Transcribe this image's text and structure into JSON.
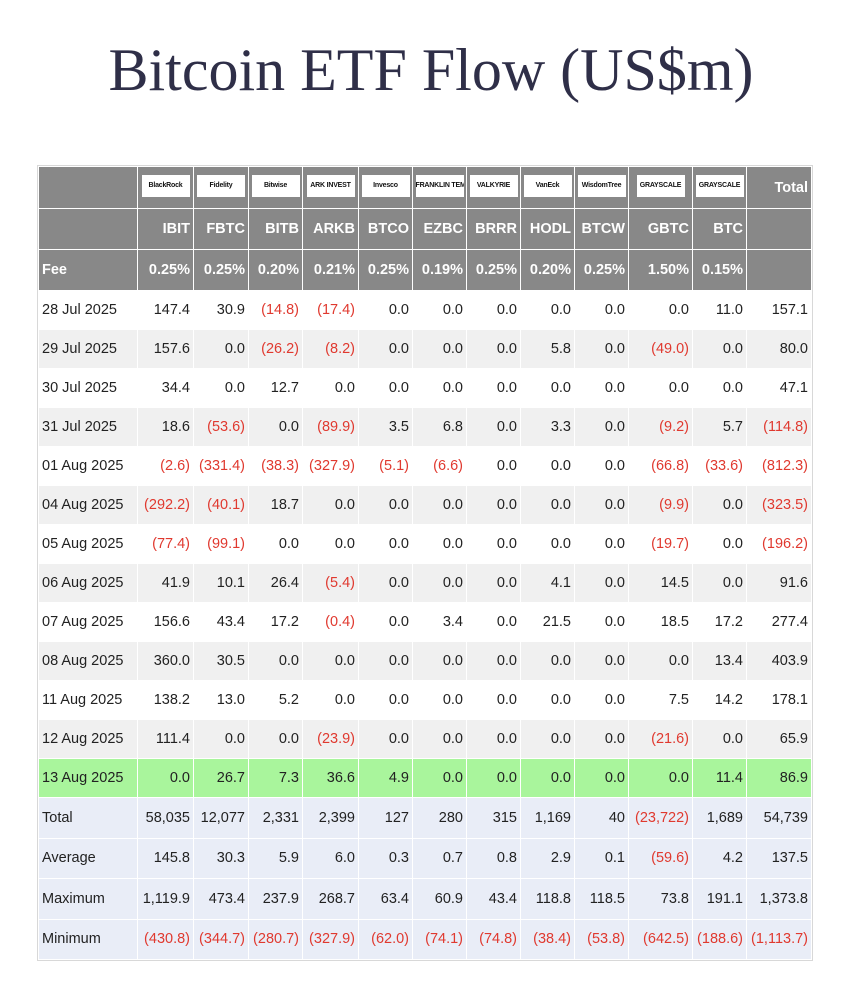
{
  "title": "Bitcoin ETF Flow (US$m)",
  "table": {
    "logos": [
      "BlackRock",
      "Fidelity",
      "Bitwise",
      "ARK INVEST",
      "Invesco",
      "FRANKLIN TEMPLETON",
      "VALKYRIE",
      "VanEck",
      "WisdomTree",
      "GRAYSCALE",
      "GRAYSCALE"
    ],
    "total_header": "Total",
    "tickers": [
      "IBIT",
      "FBTC",
      "BITB",
      "ARKB",
      "BTCO",
      "EZBC",
      "BRRR",
      "HODL",
      "BTCW",
      "GBTC",
      "BTC"
    ],
    "fee": {
      "label": "Fee",
      "values": [
        "0.25%",
        "0.25%",
        "0.20%",
        "0.21%",
        "0.25%",
        "0.19%",
        "0.25%",
        "0.20%",
        "0.25%",
        "1.50%",
        "0.15%"
      ]
    },
    "rows": [
      {
        "date": "28 Jul 2025",
        "values": [
          "147.4",
          "30.9",
          "(14.8)",
          "(17.4)",
          "0.0",
          "0.0",
          "0.0",
          "0.0",
          "0.0",
          "0.0",
          "11.0",
          "157.1"
        ]
      },
      {
        "date": "29 Jul 2025",
        "values": [
          "157.6",
          "0.0",
          "(26.2)",
          "(8.2)",
          "0.0",
          "0.0",
          "0.0",
          "5.8",
          "0.0",
          "(49.0)",
          "0.0",
          "80.0"
        ]
      },
      {
        "date": "30 Jul 2025",
        "values": [
          "34.4",
          "0.0",
          "12.7",
          "0.0",
          "0.0",
          "0.0",
          "0.0",
          "0.0",
          "0.0",
          "0.0",
          "0.0",
          "47.1"
        ]
      },
      {
        "date": "31 Jul 2025",
        "values": [
          "18.6",
          "(53.6)",
          "0.0",
          "(89.9)",
          "3.5",
          "6.8",
          "0.0",
          "3.3",
          "0.0",
          "(9.2)",
          "5.7",
          "(114.8)"
        ]
      },
      {
        "date": "01 Aug 2025",
        "values": [
          "(2.6)",
          "(331.4)",
          "(38.3)",
          "(327.9)",
          "(5.1)",
          "(6.6)",
          "0.0",
          "0.0",
          "0.0",
          "(66.8)",
          "(33.6)",
          "(812.3)"
        ]
      },
      {
        "date": "04 Aug 2025",
        "values": [
          "(292.2)",
          "(40.1)",
          "18.7",
          "0.0",
          "0.0",
          "0.0",
          "0.0",
          "0.0",
          "0.0",
          "(9.9)",
          "0.0",
          "(323.5)"
        ]
      },
      {
        "date": "05 Aug 2025",
        "values": [
          "(77.4)",
          "(99.1)",
          "0.0",
          "0.0",
          "0.0",
          "0.0",
          "0.0",
          "0.0",
          "0.0",
          "(19.7)",
          "0.0",
          "(196.2)"
        ]
      },
      {
        "date": "06 Aug 2025",
        "values": [
          "41.9",
          "10.1",
          "26.4",
          "(5.4)",
          "0.0",
          "0.0",
          "0.0",
          "4.1",
          "0.0",
          "14.5",
          "0.0",
          "91.6"
        ]
      },
      {
        "date": "07 Aug 2025",
        "values": [
          "156.6",
          "43.4",
          "17.2",
          "(0.4)",
          "0.0",
          "3.4",
          "0.0",
          "21.5",
          "0.0",
          "18.5",
          "17.2",
          "277.4"
        ]
      },
      {
        "date": "08 Aug 2025",
        "values": [
          "360.0",
          "30.5",
          "0.0",
          "0.0",
          "0.0",
          "0.0",
          "0.0",
          "0.0",
          "0.0",
          "0.0",
          "13.4",
          "403.9"
        ]
      },
      {
        "date": "11 Aug 2025",
        "values": [
          "138.2",
          "13.0",
          "5.2",
          "0.0",
          "0.0",
          "0.0",
          "0.0",
          "0.0",
          "0.0",
          "7.5",
          "14.2",
          "178.1"
        ]
      },
      {
        "date": "12 Aug 2025",
        "values": [
          "111.4",
          "0.0",
          "0.0",
          "(23.9)",
          "0.0",
          "0.0",
          "0.0",
          "0.0",
          "0.0",
          "(21.6)",
          "0.0",
          "65.9"
        ]
      },
      {
        "date": "13 Aug 2025",
        "values": [
          "0.0",
          "26.7",
          "7.3",
          "36.6",
          "4.9",
          "0.0",
          "0.0",
          "0.0",
          "0.0",
          "0.0",
          "11.4",
          "86.9"
        ]
      }
    ],
    "summary": [
      {
        "label": "Total",
        "values": [
          "58,035",
          "12,077",
          "2,331",
          "2,399",
          "127",
          "280",
          "315",
          "1,169",
          "40",
          "(23,722)",
          "1,689",
          "54,739"
        ]
      },
      {
        "label": "Average",
        "values": [
          "145.8",
          "30.3",
          "5.9",
          "6.0",
          "0.3",
          "0.7",
          "0.8",
          "2.9",
          "0.1",
          "(59.6)",
          "4.2",
          "137.5"
        ]
      },
      {
        "label": "Maximum",
        "values": [
          "1,119.9",
          "473.4",
          "237.9",
          "268.7",
          "63.4",
          "60.9",
          "43.4",
          "118.8",
          "118.5",
          "73.8",
          "191.1",
          "1,373.8"
        ]
      },
      {
        "label": "Minimum",
        "values": [
          "(430.8)",
          "(344.7)",
          "(280.7)",
          "(327.9)",
          "(62.0)",
          "(74.1)",
          "(74.8)",
          "(38.4)",
          "(53.8)",
          "(642.5)",
          "(188.6)",
          "(1,113.7)"
        ]
      }
    ]
  }
}
